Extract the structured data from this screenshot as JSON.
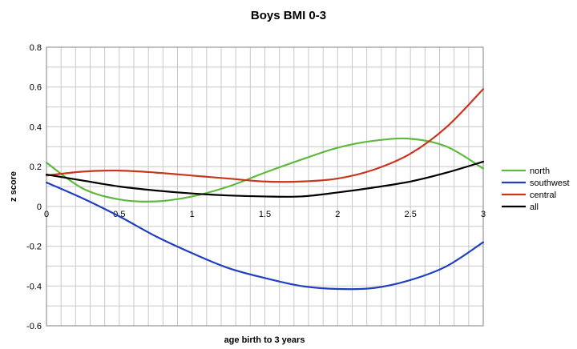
{
  "chart_data": {
    "type": "line",
    "title": "Boys BMI 0-3",
    "xlabel": "age birth to 3 years",
    "ylabel": "z score",
    "xlim": [
      0,
      3
    ],
    "ylim": [
      -0.6,
      0.8
    ],
    "x_ticks": [
      0,
      0.5,
      1,
      1.5,
      2,
      2.5,
      3
    ],
    "x_tick_labels": [
      "0",
      "0.5",
      "1",
      "1.5",
      "2",
      "2.5",
      "3"
    ],
    "y_ticks": [
      -0.6,
      -0.4,
      -0.2,
      0,
      0.2,
      0.4,
      0.6,
      0.8
    ],
    "y_tick_labels": [
      "-0.6",
      "-0.4",
      "-0.2",
      "0",
      "0.2",
      "0.4",
      "0.6",
      "0.8"
    ],
    "grid": true,
    "legend_position": "right",
    "x": [
      0,
      0.25,
      0.5,
      0.75,
      1,
      1.25,
      1.5,
      1.75,
      2,
      2.25,
      2.5,
      2.75,
      3
    ],
    "series": [
      {
        "name": "north",
        "color": "#5dba3c",
        "values": [
          0.22,
          0.09,
          0.035,
          0.025,
          0.05,
          0.1,
          0.17,
          0.235,
          0.295,
          0.33,
          0.34,
          0.3,
          0.19
        ]
      },
      {
        "name": "southwest",
        "color": "#1f3fc0",
        "values": [
          0.12,
          0.04,
          -0.05,
          -0.15,
          -0.235,
          -0.31,
          -0.36,
          -0.4,
          -0.415,
          -0.41,
          -0.37,
          -0.3,
          -0.18
        ]
      },
      {
        "name": "central",
        "color": "#c8361e",
        "values": [
          0.155,
          0.175,
          0.18,
          0.17,
          0.155,
          0.14,
          0.125,
          0.125,
          0.14,
          0.185,
          0.265,
          0.4,
          0.59
        ]
      },
      {
        "name": "all",
        "color": "#000000",
        "values": [
          0.16,
          0.13,
          0.1,
          0.08,
          0.065,
          0.055,
          0.05,
          0.05,
          0.07,
          0.095,
          0.125,
          0.17,
          0.225
        ]
      }
    ]
  }
}
